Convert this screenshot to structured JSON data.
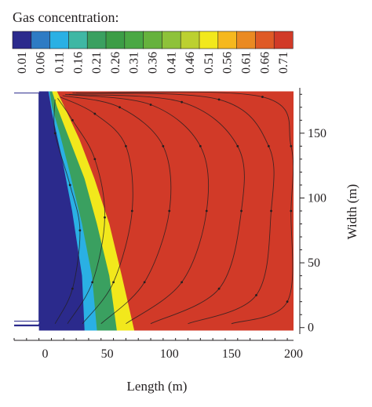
{
  "chart_data": {
    "type": "heatmap",
    "title": "Gas concentration:",
    "xlabel": "Length (m)",
    "ylabel": "Width (m)",
    "xlim": [
      -25,
      200
    ],
    "ylim": [
      -5,
      185
    ],
    "x_ticks": [
      0,
      50,
      100,
      150,
      200
    ],
    "y_ticks": [
      0,
      50,
      100,
      150
    ],
    "colorbar": {
      "levels": [
        "0.01",
        "0.06",
        "0.11",
        "0.16",
        "0.21",
        "0.26",
        "0.31",
        "0.36",
        "0.41",
        "0.46",
        "0.51",
        "0.56",
        "0.61",
        "0.66",
        "0.71"
      ],
      "colors": [
        "#2b2a8c",
        "#2e7bc4",
        "#2ab0e4",
        "#3fb7a4",
        "#3aa060",
        "#3c9d46",
        "#4aa844",
        "#66b23d",
        "#8ec23a",
        "#bcd030",
        "#f2e81c",
        "#f6b81e",
        "#ea8a22",
        "#df5a26",
        "#d13a28"
      ]
    },
    "regions": [
      {
        "level": "0.01",
        "color": "#2b2a8c",
        "boundary": [
          [
            -25,
            2
          ],
          [
            -25,
            -2
          ],
          [
            32,
            -2
          ],
          [
            30,
            40
          ],
          [
            22,
            90
          ],
          [
            14,
            130
          ],
          [
            6,
            165
          ],
          [
            3,
            182
          ],
          [
            -5,
            182
          ],
          [
            -5,
            2
          ]
        ]
      },
      {
        "level": "0.06",
        "color": "#2ab0e4",
        "boundary": [
          [
            32,
            -2
          ],
          [
            42,
            -2
          ],
          [
            38,
            40
          ],
          [
            30,
            80
          ],
          [
            20,
            120
          ],
          [
            12,
            150
          ],
          [
            6,
            170
          ],
          [
            4,
            182
          ],
          [
            3,
            182
          ],
          [
            6,
            165
          ],
          [
            14,
            130
          ],
          [
            22,
            90
          ],
          [
            30,
            40
          ]
        ]
      },
      {
        "level": "0.36",
        "color": "#3aa060",
        "boundary": [
          [
            42,
            -2
          ],
          [
            58,
            -2
          ],
          [
            52,
            40
          ],
          [
            42,
            80
          ],
          [
            32,
            115
          ],
          [
            20,
            145
          ],
          [
            10,
            170
          ],
          [
            6,
            182
          ],
          [
            4,
            182
          ],
          [
            6,
            170
          ],
          [
            12,
            150
          ],
          [
            20,
            120
          ],
          [
            30,
            80
          ],
          [
            38,
            40
          ]
        ]
      },
      {
        "level": "0.51",
        "color": "#f2e81c",
        "boundary": [
          [
            58,
            -2
          ],
          [
            72,
            -2
          ],
          [
            62,
            40
          ],
          [
            52,
            80
          ],
          [
            40,
            115
          ],
          [
            28,
            145
          ],
          [
            16,
            170
          ],
          [
            10,
            182
          ],
          [
            6,
            182
          ],
          [
            10,
            170
          ],
          [
            20,
            145
          ],
          [
            32,
            115
          ],
          [
            42,
            80
          ],
          [
            52,
            40
          ]
        ]
      },
      {
        "level": "0.71",
        "color": "#d13a28",
        "boundary": [
          [
            72,
            -2
          ],
          [
            200,
            -2
          ],
          [
            200,
            182
          ],
          [
            10,
            182
          ],
          [
            16,
            170
          ],
          [
            28,
            145
          ],
          [
            40,
            115
          ],
          [
            52,
            80
          ],
          [
            62,
            40
          ]
        ]
      }
    ],
    "streamlines": [
      [
        [
          14,
          179
        ],
        [
          60,
          170
        ],
        [
          95,
          140
        ],
        [
          100,
          90
        ],
        [
          80,
          35
        ],
        [
          45,
          3
        ]
      ],
      [
        [
          16,
          180
        ],
        [
          85,
          172
        ],
        [
          125,
          140
        ],
        [
          130,
          90
        ],
        [
          110,
          35
        ],
        [
          65,
          3
        ]
      ],
      [
        [
          19,
          180
        ],
        [
          110,
          174
        ],
        [
          155,
          140
        ],
        [
          158,
          90
        ],
        [
          140,
          30
        ],
        [
          85,
          3
        ]
      ],
      [
        [
          22,
          181
        ],
        [
          140,
          176
        ],
        [
          180,
          140
        ],
        [
          182,
          90
        ],
        [
          170,
          25
        ],
        [
          115,
          3
        ]
      ],
      [
        [
          25,
          181
        ],
        [
          175,
          178
        ],
        [
          198,
          140
        ],
        [
          198,
          90
        ],
        [
          195,
          20
        ],
        [
          150,
          3
        ]
      ],
      [
        [
          12,
          178
        ],
        [
          40,
          165
        ],
        [
          65,
          140
        ],
        [
          70,
          90
        ],
        [
          55,
          35
        ],
        [
          30,
          3
        ]
      ],
      [
        [
          10,
          177
        ],
        [
          22,
          160
        ],
        [
          40,
          130
        ],
        [
          48,
          85
        ],
        [
          38,
          35
        ],
        [
          18,
          3
        ]
      ],
      [
        [
          8,
          176
        ],
        [
          8,
          150
        ],
        [
          20,
          110
        ],
        [
          28,
          75
        ],
        [
          22,
          30
        ],
        [
          8,
          3
        ]
      ]
    ],
    "grid": false
  }
}
